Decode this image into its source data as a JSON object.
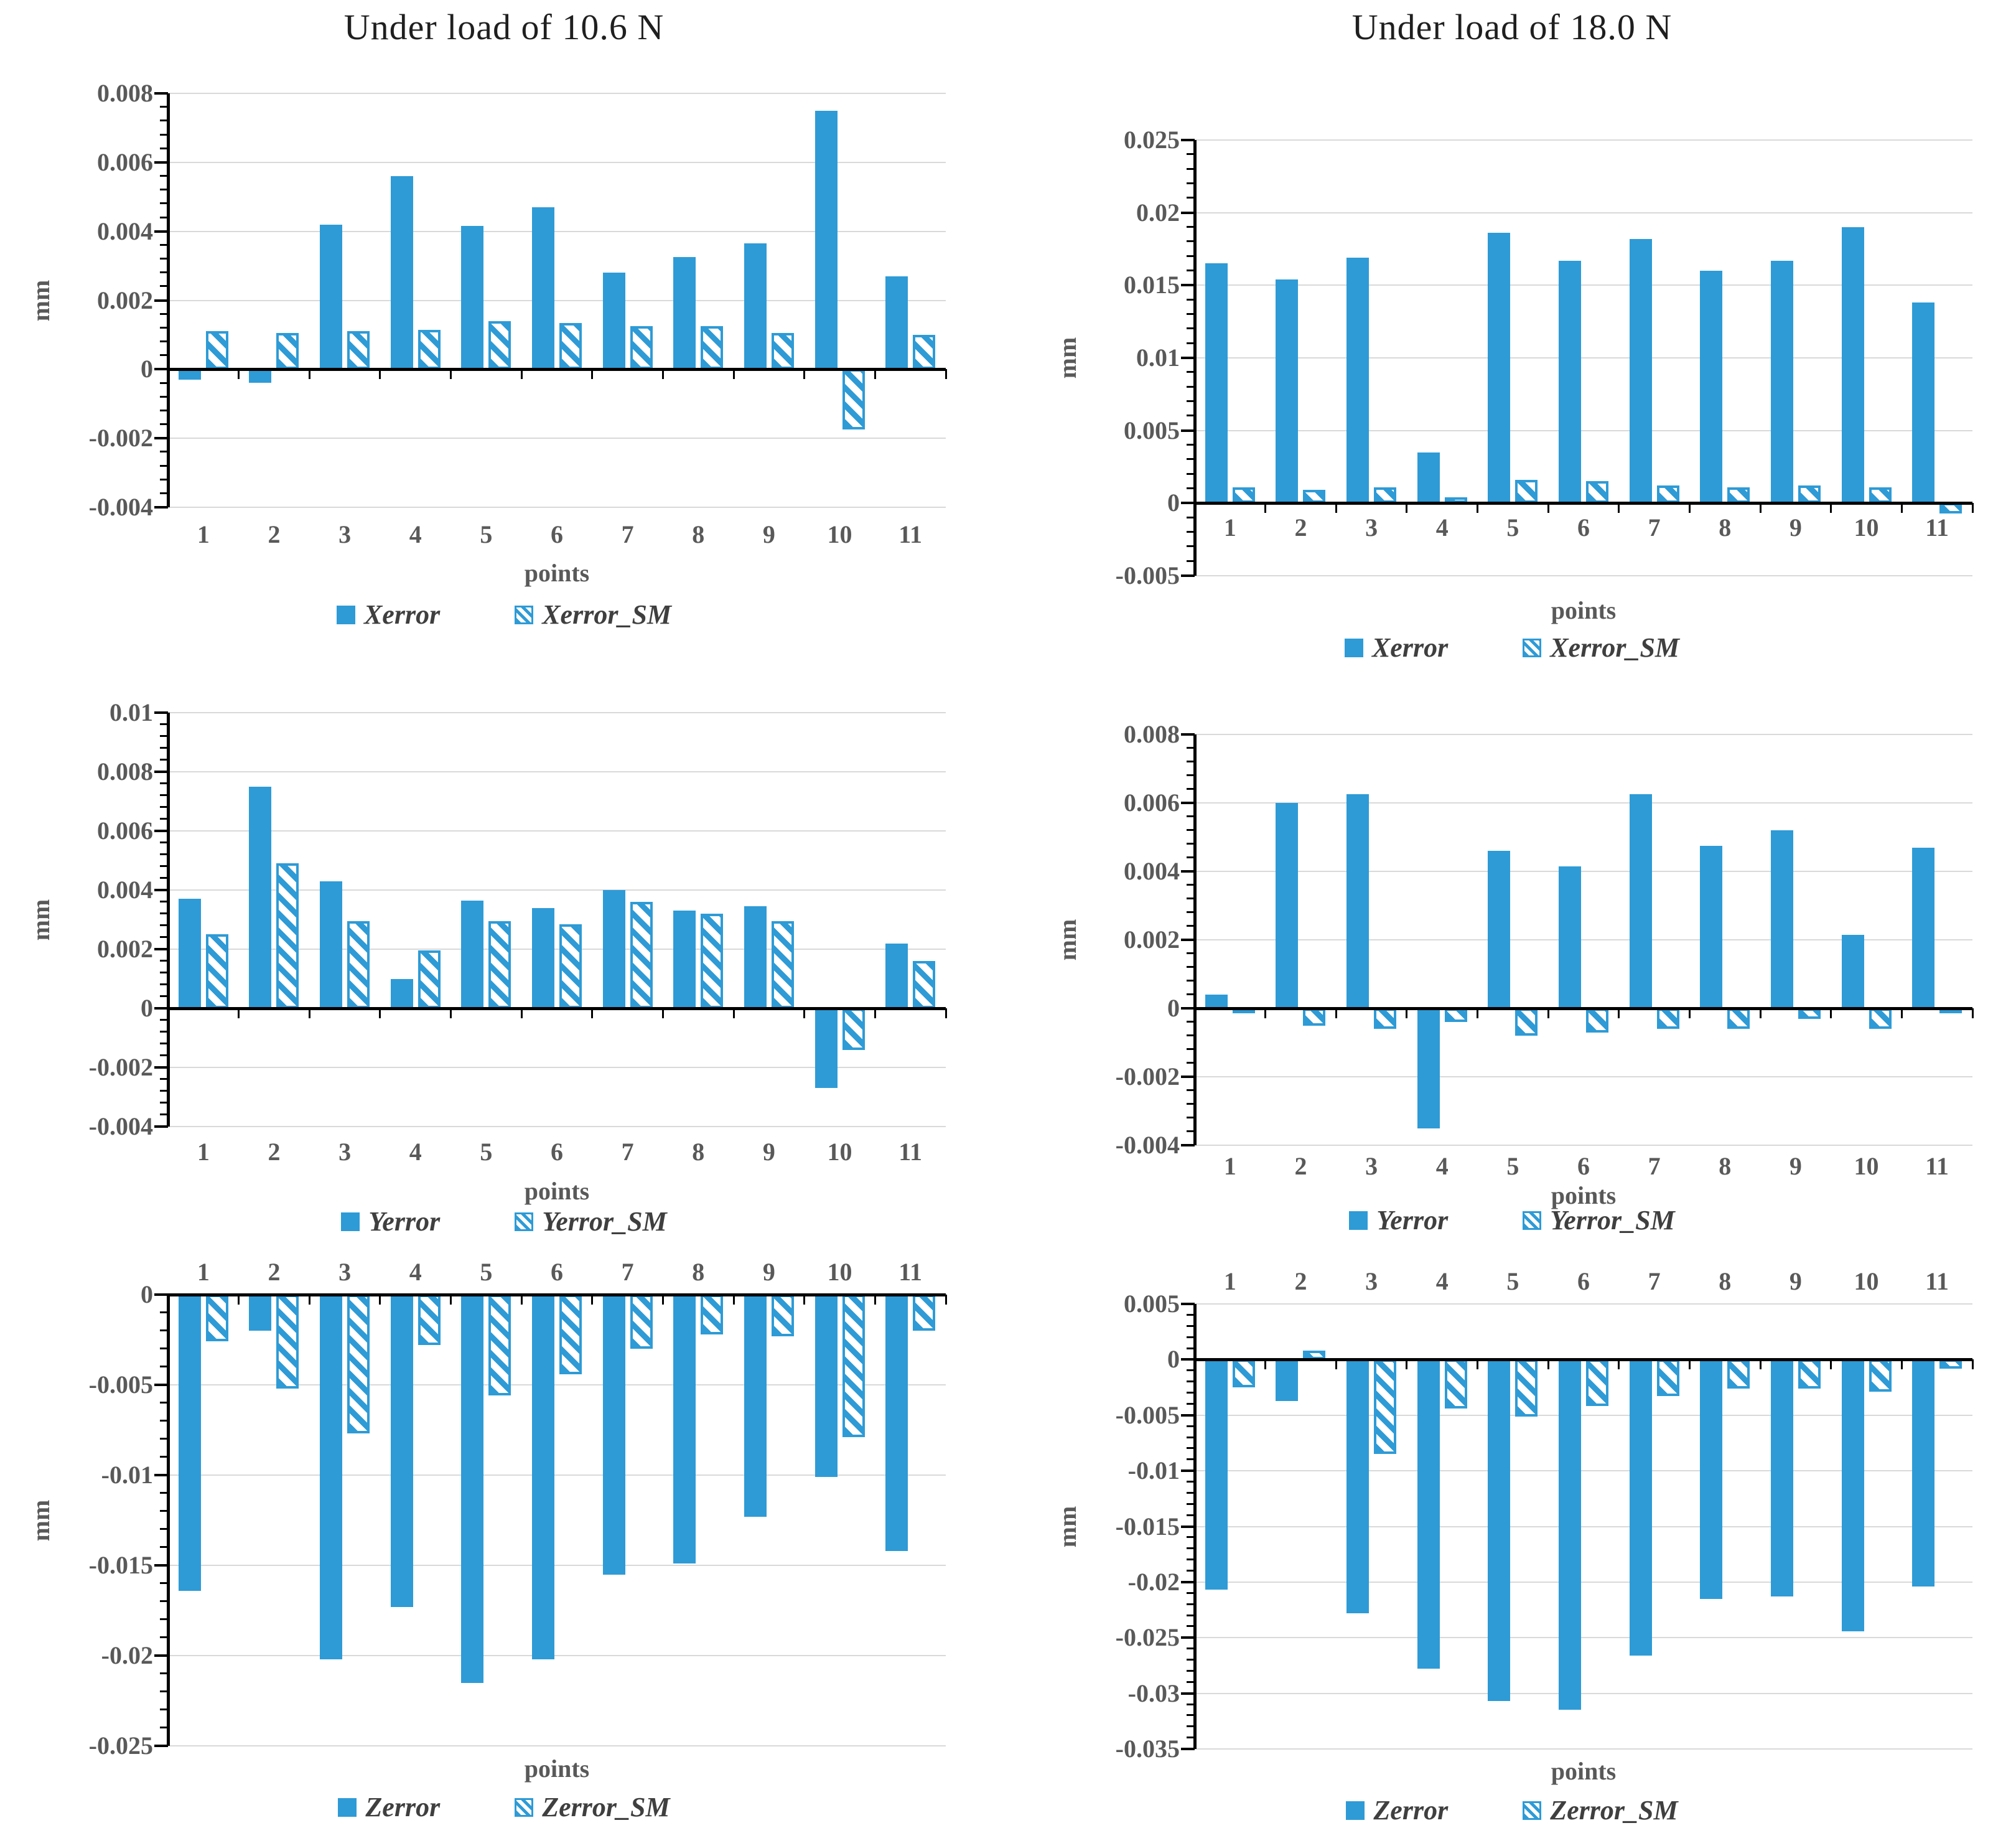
{
  "figure": {
    "left_column_title": "Under load of 10.6 N",
    "right_column_title": "Under load of 18.0 N"
  },
  "colors": {
    "bar_blue": "#2E9BD6",
    "grid_gray": "#D9D9D9",
    "axis_black": "#000000",
    "tick_text_gray": "#595959",
    "legend_text_gray": "#3F3F3F",
    "title_black": "#1F1F1F"
  },
  "chart_data": [
    {
      "type": "bar",
      "title": "Under load of 10.6 N",
      "xlabel": "points",
      "ylabel": "mm",
      "categories": [
        "1",
        "2",
        "3",
        "4",
        "5",
        "6",
        "7",
        "8",
        "9",
        "10",
        "11"
      ],
      "ylim": [
        -0.004,
        0.008
      ],
      "ystep": 0.002,
      "grid": true,
      "legend_position": "bottom",
      "category_label_position": "bottom",
      "series": [
        {
          "name": "Xerror",
          "style": "solid",
          "values": [
            -0.0003,
            -0.0004,
            0.0042,
            0.0056,
            0.00415,
            0.0047,
            0.0028,
            0.00325,
            0.00365,
            0.0075,
            0.0027
          ]
        },
        {
          "name": "Xerror_SM",
          "style": "hatched",
          "values": [
            0.0011,
            0.00105,
            0.0011,
            0.00115,
            0.0014,
            0.00135,
            0.00125,
            0.00125,
            0.00105,
            -0.00175,
            0.001
          ]
        }
      ]
    },
    {
      "type": "bar",
      "title": "Under load of 18.0 N",
      "xlabel": "points",
      "ylabel": "mm",
      "categories": [
        "1",
        "2",
        "3",
        "4",
        "5",
        "6",
        "7",
        "8",
        "9",
        "10",
        "11"
      ],
      "ylim": [
        -0.005,
        0.025
      ],
      "ystep": 0.005,
      "grid": true,
      "legend_position": "bottom",
      "category_label_position": "axis",
      "series": [
        {
          "name": "Xerror",
          "style": "solid",
          "values": [
            0.0165,
            0.0154,
            0.0169,
            0.0035,
            0.0186,
            0.0167,
            0.0182,
            0.016,
            0.0167,
            0.019,
            0.0138
          ]
        },
        {
          "name": "Xerror_SM",
          "style": "hatched",
          "values": [
            0.0011,
            0.0009,
            0.0011,
            0.0004,
            0.0016,
            0.0015,
            0.0012,
            0.0011,
            0.0012,
            0.0011,
            -0.0007
          ]
        }
      ]
    },
    {
      "type": "bar",
      "title": null,
      "xlabel": "points",
      "ylabel": "mm",
      "categories": [
        "1",
        "2",
        "3",
        "4",
        "5",
        "6",
        "7",
        "8",
        "9",
        "10",
        "11"
      ],
      "ylim": [
        -0.004,
        0.01
      ],
      "ystep": 0.002,
      "grid": true,
      "legend_position": "bottom",
      "category_label_position": "bottom",
      "series": [
        {
          "name": "Yerror",
          "style": "solid",
          "values": [
            0.0037,
            0.0075,
            0.0043,
            0.001,
            0.00365,
            0.0034,
            0.004,
            0.0033,
            0.00345,
            -0.0027,
            0.0022
          ]
        },
        {
          "name": "Yerror_SM",
          "style": "hatched",
          "values": [
            0.0025,
            0.0049,
            0.00295,
            0.00195,
            0.00295,
            0.00285,
            0.0036,
            0.0032,
            0.00295,
            -0.0014,
            0.0016
          ]
        }
      ]
    },
    {
      "type": "bar",
      "title": null,
      "xlabel": "points",
      "ylabel": "mm",
      "categories": [
        "1",
        "2",
        "3",
        "4",
        "5",
        "6",
        "7",
        "8",
        "9",
        "10",
        "11"
      ],
      "ylim": [
        -0.004,
        0.008
      ],
      "ystep": 0.002,
      "grid": true,
      "legend_position": "bottom",
      "category_label_position": "bottom",
      "series": [
        {
          "name": "Yerror",
          "style": "solid",
          "values": [
            0.0004,
            0.006,
            0.00625,
            -0.0035,
            0.0046,
            0.00415,
            0.00625,
            0.00475,
            0.0052,
            0.00215,
            0.0047
          ]
        },
        {
          "name": "Yerror_SM",
          "style": "hatched",
          "values": [
            -0.0001,
            -0.0005,
            -0.0006,
            -0.0004,
            -0.0008,
            -0.0007,
            -0.0006,
            -0.0006,
            -0.0003,
            -0.0006,
            -0.0001
          ]
        }
      ]
    },
    {
      "type": "bar",
      "title": null,
      "xlabel": "points",
      "ylabel": "mm",
      "categories": [
        "1",
        "2",
        "3",
        "4",
        "5",
        "6",
        "7",
        "8",
        "9",
        "10",
        "11"
      ],
      "ylim": [
        -0.025,
        0
      ],
      "ystep": 0.005,
      "grid": true,
      "legend_position": "bottom",
      "category_label_position": "top",
      "series": [
        {
          "name": "Zerror",
          "style": "solid",
          "values": [
            -0.0164,
            -0.002,
            -0.0202,
            -0.0173,
            -0.0215,
            -0.0202,
            -0.0155,
            -0.0149,
            -0.0123,
            -0.0101,
            -0.0142
          ]
        },
        {
          "name": "Zerror_SM",
          "style": "hatched",
          "values": [
            -0.0026,
            -0.0052,
            -0.0077,
            -0.0028,
            -0.0056,
            -0.0044,
            -0.003,
            -0.0022,
            -0.0023,
            -0.0079,
            -0.002
          ]
        }
      ]
    },
    {
      "type": "bar",
      "title": null,
      "xlabel": "points",
      "ylabel": "mm",
      "categories": [
        "1",
        "2",
        "3",
        "4",
        "5",
        "6",
        "7",
        "8",
        "9",
        "10",
        "11"
      ],
      "ylim": [
        -0.035,
        0.005
      ],
      "ystep": 0.005,
      "grid": true,
      "legend_position": "bottom",
      "category_label_position": "top",
      "series": [
        {
          "name": "Zerror",
          "style": "solid",
          "values": [
            -0.0207,
            -0.0037,
            -0.0228,
            -0.0278,
            -0.0307,
            -0.0315,
            -0.0266,
            -0.0215,
            -0.0213,
            -0.0244,
            -0.0204
          ]
        },
        {
          "name": "Zerror_SM",
          "style": "hatched",
          "values": [
            -0.0025,
            0.0008,
            -0.0085,
            -0.0044,
            -0.0051,
            -0.0042,
            -0.0033,
            -0.0026,
            -0.0026,
            -0.0029,
            -0.0008
          ]
        }
      ]
    }
  ]
}
